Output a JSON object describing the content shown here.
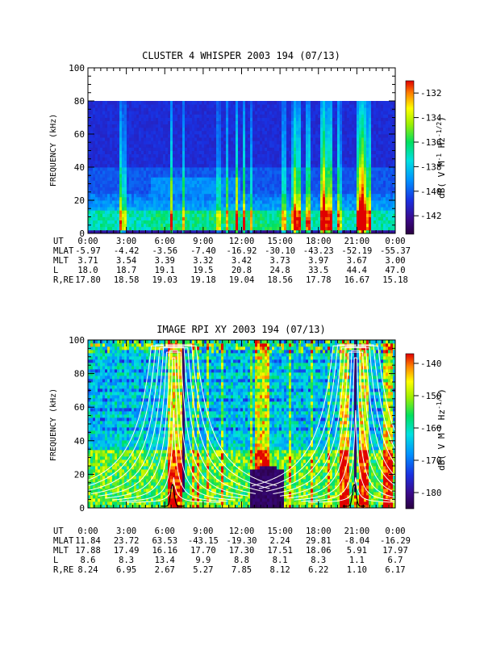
{
  "chart_data": [
    {
      "type": "heatmap",
      "title": "CLUSTER 4 WHISPER 2003 194 (07/13)",
      "ylabel": "FREQUENCY (kHz)",
      "ylim": [
        0,
        100
      ],
      "yticks": [
        "0",
        "20",
        "40",
        "60",
        "80",
        "100"
      ],
      "data_max_khz": 80,
      "xlim_hours": [
        0,
        24
      ],
      "colorbar": {
        "label": "dB( V M^-1 Hz^-1/2)",
        "range": [
          -143.5,
          -131.0
        ],
        "ticks": [
          "-132",
          "-134",
          "-136",
          "-138",
          "-140",
          "-142"
        ]
      },
      "ephemeris": {
        "rows": [
          {
            "label": "UT",
            "values": [
              "0:00",
              "3:00",
              "6:00",
              "9:00",
              "12:00",
              "15:00",
              "18:00",
              "21:00",
              "0:00"
            ]
          },
          {
            "label": "MLAT",
            "values": [
              "-5.97",
              "-4.42",
              "-3.56",
              "-7.40",
              "-16.92",
              "-30.10",
              "-43.23",
              "-52.19",
              "-55.37"
            ]
          },
          {
            "label": "MLT",
            "values": [
              "3.71",
              "3.54",
              "3.39",
              "3.32",
              "3.42",
              "3.73",
              "3.97",
              "3.67",
              "3.00"
            ]
          },
          {
            "label": "L",
            "values": [
              "18.0",
              "18.7",
              "19.1",
              "19.5",
              "20.8",
              "24.8",
              "33.5",
              "44.4",
              "47.0"
            ]
          },
          {
            "label": "R,RE",
            "values": [
              "17.80",
              "18.58",
              "19.03",
              "19.18",
              "19.04",
              "18.56",
              "17.78",
              "16.67",
              "15.18"
            ]
          }
        ]
      }
    },
    {
      "type": "heatmap",
      "title": "IMAGE RPI XY 2003 194 (07/13)",
      "ylabel": "FREQUENCY (kHz)",
      "ylim": [
        0,
        100
      ],
      "yticks": [
        "0",
        "20",
        "40",
        "60",
        "80",
        "100"
      ],
      "xlim_hours": [
        0,
        24
      ],
      "colorbar": {
        "label": "dB( V M^-1 Hz^-1/2)",
        "range": [
          -185,
          -137
        ],
        "ticks": [
          "-140",
          "-150",
          "-160",
          "-170",
          "-180"
        ]
      },
      "ephemeris": {
        "rows": [
          {
            "label": "UT",
            "values": [
              "0:00",
              "3:00",
              "6:00",
              "9:00",
              "12:00",
              "15:00",
              "18:00",
              "21:00",
              "0:00"
            ]
          },
          {
            "label": "MLAT",
            "values": [
              "11.84",
              "23.72",
              "63.53",
              "-43.15",
              "-19.30",
              "2.24",
              "29.81",
              "-8.04",
              "-16.29"
            ]
          },
          {
            "label": "MLT",
            "values": [
              "17.88",
              "17.49",
              "16.16",
              "17.70",
              "17.30",
              "17.51",
              "18.06",
              "5.91",
              "17.97"
            ]
          },
          {
            "label": "L",
            "values": [
              "8.6",
              "8.3",
              "13.4",
              "9.9",
              "8.8",
              "8.1",
              "8.3",
              "1.1",
              "6.7"
            ]
          },
          {
            "label": "R,RE",
            "values": [
              "8.24",
              "6.95",
              "2.67",
              "5.27",
              "7.85",
              "8.12",
              "6.22",
              "1.10",
              "6.17"
            ]
          }
        ]
      }
    }
  ]
}
